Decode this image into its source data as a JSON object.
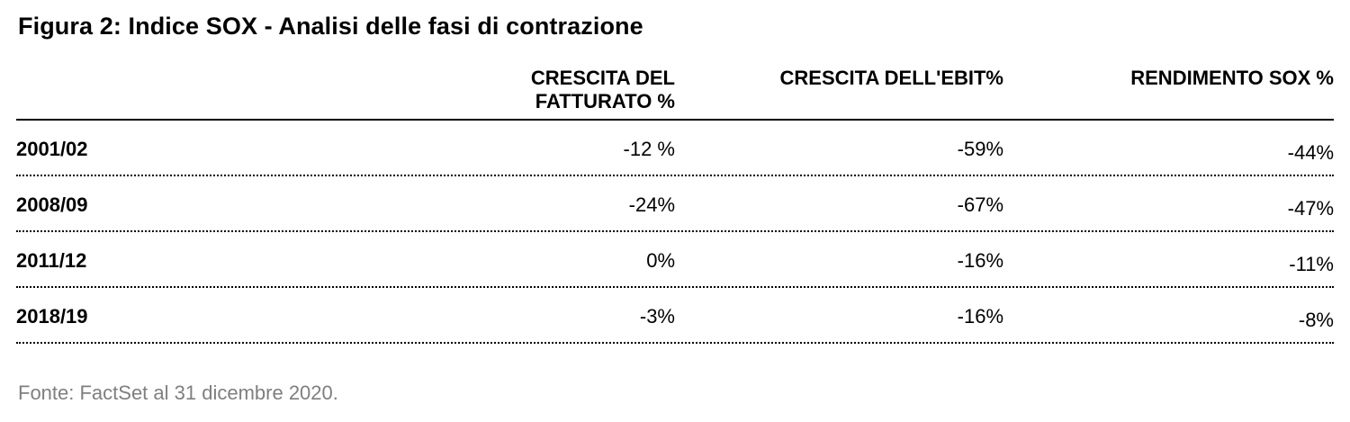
{
  "chart_data": {
    "type": "table",
    "title": "Figura 2: Indice SOX - Analisi delle fasi di contrazione",
    "columns": [
      "CRESCITA DEL\nFATTURATO %",
      "CRESCITA DELL'EBIT%",
      "RENDIMENTO SOX %"
    ],
    "rows": [
      {
        "label": "2001/02",
        "cells": [
          "-12 %",
          "-59%",
          "-44%"
        ]
      },
      {
        "label": "2008/09",
        "cells": [
          "-24%",
          "-67%",
          "-47%"
        ]
      },
      {
        "label": "2011/12",
        "cells": [
          "0%",
          "-16%",
          "-11%"
        ]
      },
      {
        "label": "2018/19",
        "cells": [
          "-3%",
          "-16%",
          "-8%"
        ]
      }
    ],
    "source": "Fonte: FactSet al 31 dicembre 2020."
  },
  "colors": {
    "text": "#000000",
    "source_text": "#7f7f7f",
    "rule": "#000000"
  }
}
